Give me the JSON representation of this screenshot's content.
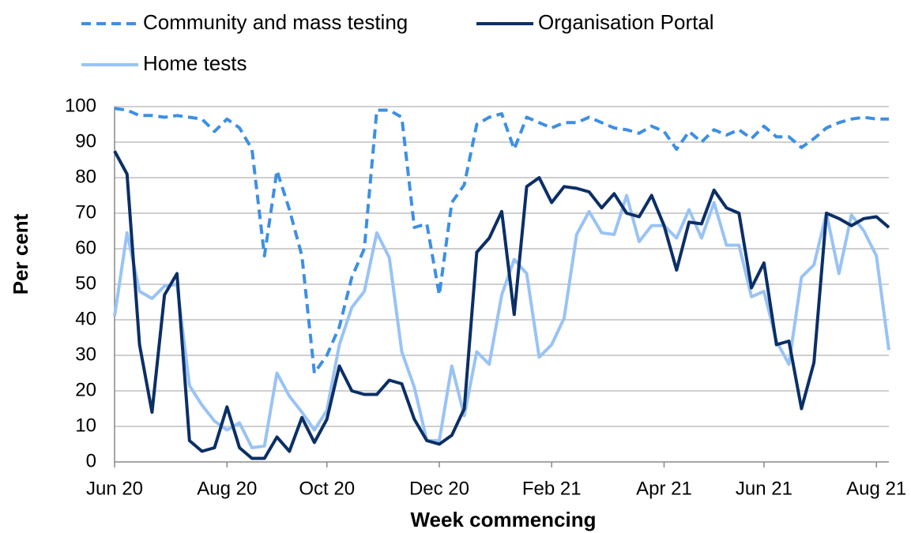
{
  "chart_data": {
    "type": "line",
    "x_label": "Week commencing",
    "y_label": "Per cent",
    "categories": [
      "Jun 20",
      null,
      null,
      null,
      null,
      null,
      null,
      null,
      null,
      "Aug 20",
      null,
      null,
      null,
      null,
      null,
      null,
      null,
      "Oct 20",
      null,
      null,
      null,
      null,
      null,
      null,
      null,
      null,
      "Dec 20",
      null,
      null,
      null,
      null,
      null,
      null,
      null,
      null,
      "Feb 21",
      null,
      null,
      null,
      null,
      null,
      null,
      null,
      null,
      "Apr 21",
      null,
      null,
      null,
      null,
      null,
      null,
      null,
      "Jun 21",
      null,
      null,
      null,
      null,
      null,
      null,
      null,
      null,
      "Aug 21",
      null
    ],
    "series": [
      {
        "name": "Community and mass testing",
        "color": "#3d8fe5",
        "dashed": true,
        "values": [
          99.5,
          99,
          97.5,
          97.5,
          97,
          97.5,
          97,
          96.5,
          93,
          96.5,
          94,
          88,
          58,
          82,
          71,
          58,
          25,
          30,
          38,
          52,
          60,
          99,
          99,
          97,
          66,
          67,
          47,
          73,
          78,
          95,
          97,
          98,
          88,
          97,
          95.5,
          94,
          95.5,
          95.5,
          97,
          95.5,
          94,
          93.5,
          92.5,
          94.5,
          93,
          88,
          93,
          90,
          93.5,
          92,
          93.5,
          91,
          94.5,
          91.5,
          91.5,
          88.5,
          91,
          94,
          95.5,
          96.5,
          97,
          96.5,
          96.5
        ]
      },
      {
        "name": "Organisation Portal",
        "color": "#0b2f66",
        "dashed": false,
        "values": [
          87.5,
          81,
          33,
          14,
          47,
          53,
          6,
          3,
          4,
          15.5,
          4,
          1,
          1,
          7,
          3,
          12.5,
          5.5,
          12,
          27,
          20,
          19,
          19,
          23,
          22,
          12,
          6,
          5,
          7.5,
          15,
          59,
          63,
          70.5,
          41.5,
          77.5,
          80,
          73,
          77.5,
          77,
          76,
          71.5,
          75.5,
          70,
          69,
          75,
          66.5,
          54,
          67.5,
          67,
          76.5,
          71.5,
          70,
          49,
          56,
          33,
          34,
          15,
          28,
          70,
          68.5,
          66.5,
          68.5,
          69,
          66
        ]
      },
      {
        "name": "Home tests",
        "color": "#99c3f5",
        "dashed": false,
        "values": [
          41,
          64.5,
          48,
          46,
          49.5,
          50,
          21.5,
          16,
          11.5,
          9,
          11,
          4,
          4.5,
          25,
          18.5,
          14,
          9,
          14.5,
          33,
          43.5,
          48,
          64.5,
          57.5,
          31,
          21,
          6,
          6,
          27,
          13,
          31,
          27.5,
          47,
          57,
          53,
          29.5,
          33,
          40.5,
          64,
          70.5,
          64.5,
          64,
          75,
          62,
          66.5,
          66.5,
          63,
          71,
          63,
          73,
          61,
          61,
          46.5,
          48,
          34,
          27.5,
          52,
          55.5,
          70,
          53,
          69.5,
          65,
          58,
          31.5
        ]
      }
    ],
    "ylim": [
      0,
      100
    ],
    "yticks": [
      0,
      10,
      20,
      30,
      40,
      50,
      60,
      70,
      80,
      90,
      100
    ],
    "grid": true
  }
}
